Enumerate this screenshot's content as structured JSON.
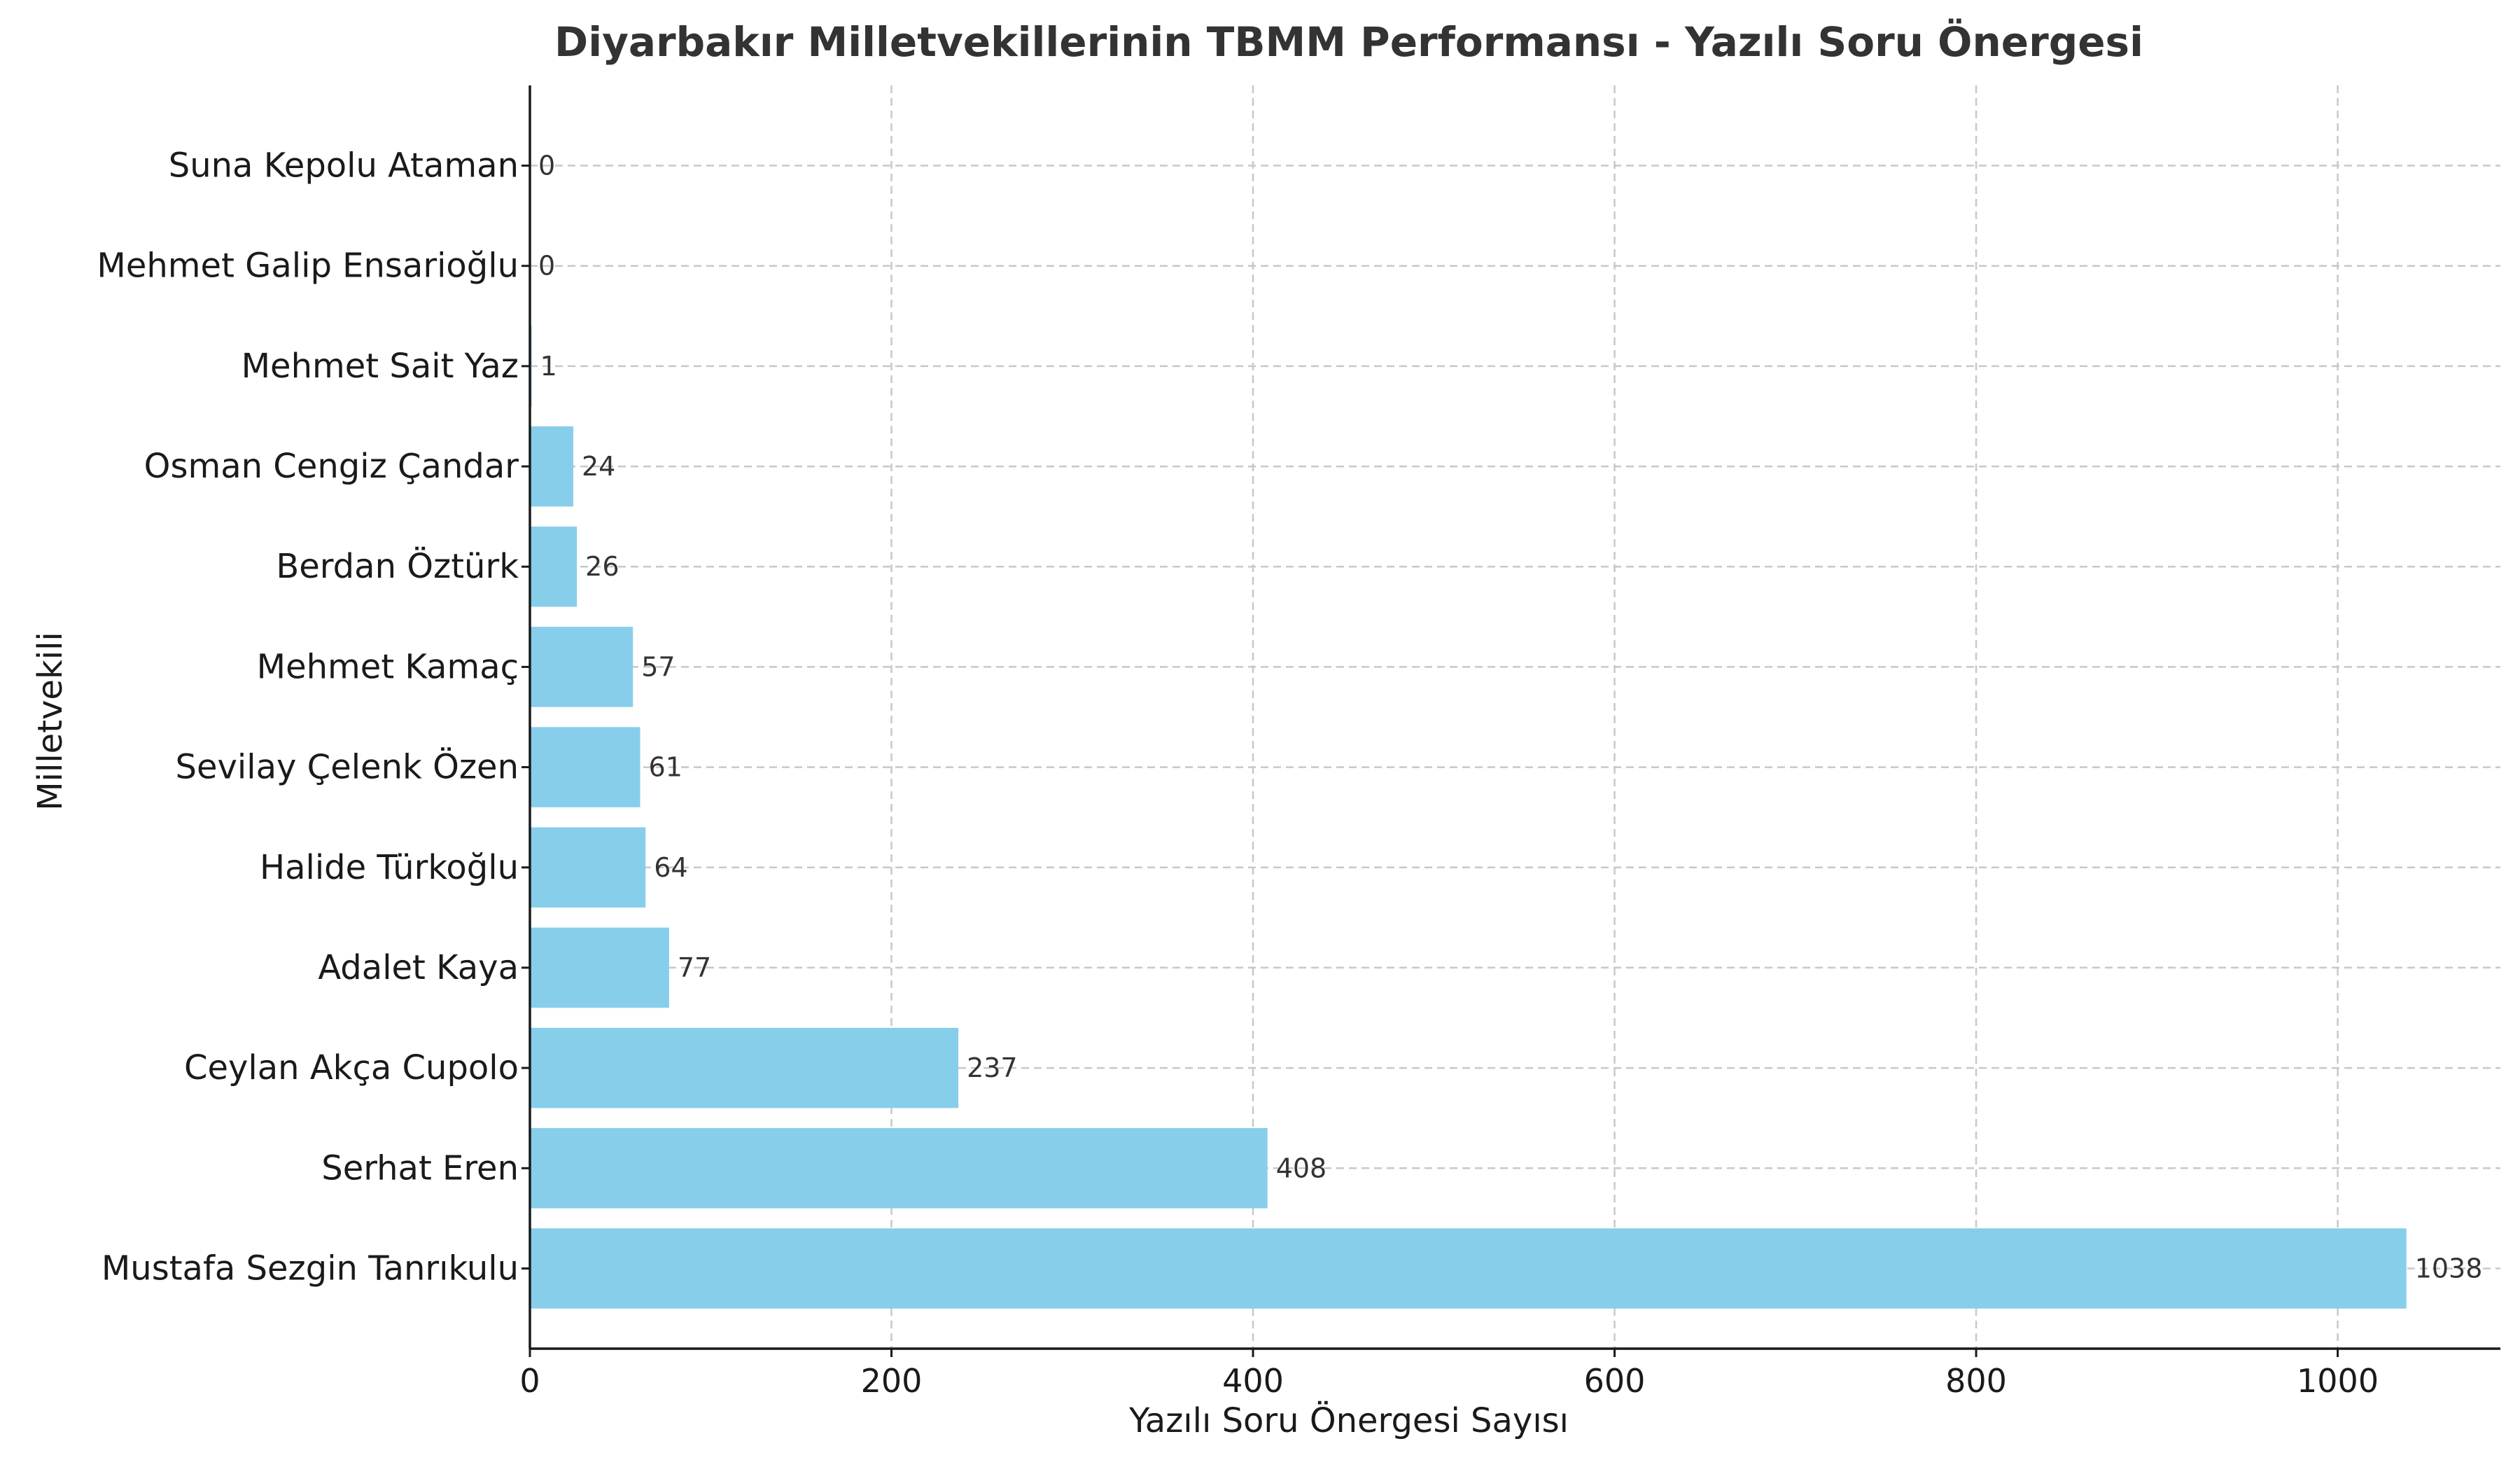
{
  "chart_data": {
    "type": "bar",
    "orientation": "horizontal",
    "title": "Diyarbakır Milletvekillerinin TBMM Performansı - Yazılı Soru Önergesi",
    "xlabel": "Yazılı Soru Önergesi Sayısı",
    "ylabel": "Milletvekili",
    "categories": [
      "Mustafa Sezgin Tanrıkulu",
      "Serhat Eren",
      "Ceylan Akça Cupolo",
      "Adalet Kaya",
      "Halide Türkoğlu",
      "Sevilay Çelenk Özen",
      "Mehmet Kamaç",
      "Berdan Öztürk",
      "Osman Cengiz Çandar",
      "Mehmet Sait Yaz",
      "Mehmet Galip Ensarioğlu",
      "Suna Kepolu Ataman"
    ],
    "values": [
      1038,
      408,
      237,
      77,
      64,
      61,
      57,
      26,
      24,
      1,
      0,
      0
    ],
    "xlim": [
      0,
      1090
    ],
    "xticks": [
      0,
      200,
      400,
      600,
      800,
      1000
    ],
    "grid": true,
    "bar_color": "#87ceeb",
    "show_data_labels": true
  }
}
